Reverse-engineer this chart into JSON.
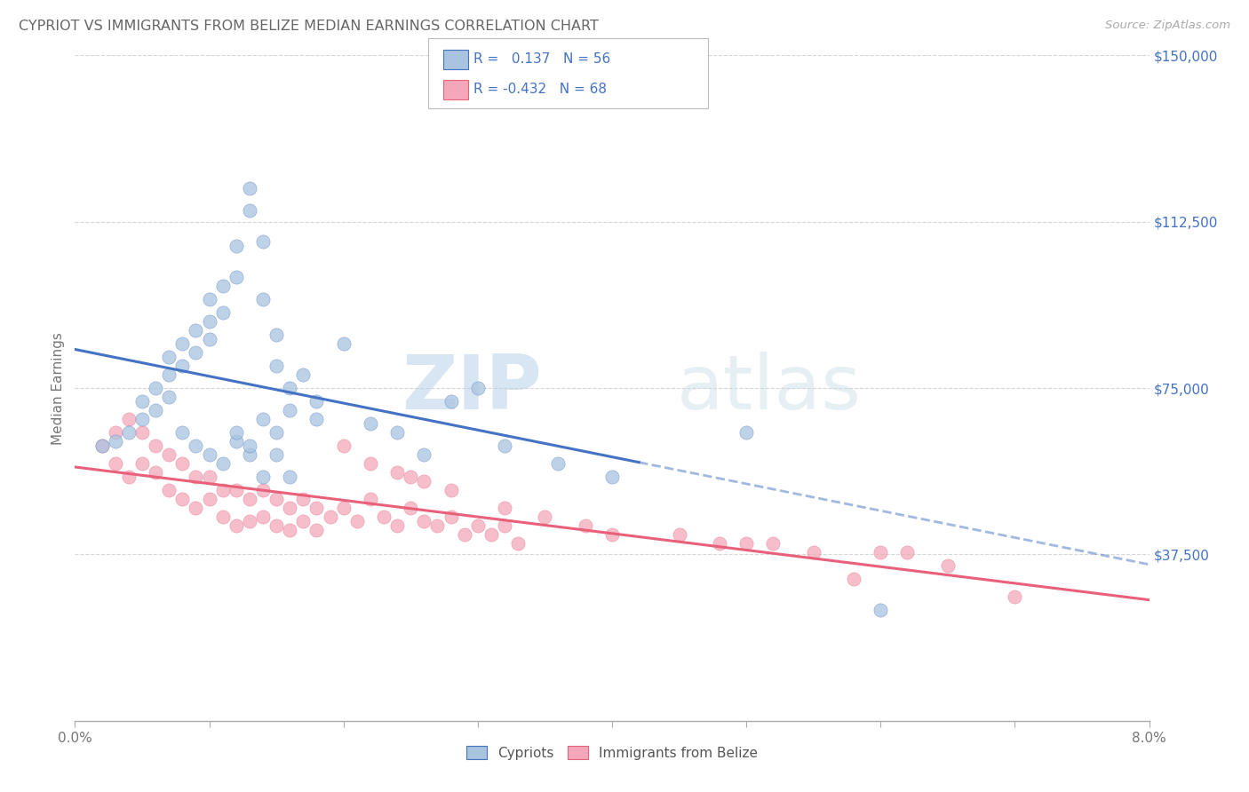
{
  "title": "CYPRIOT VS IMMIGRANTS FROM BELIZE MEDIAN EARNINGS CORRELATION CHART",
  "source": "Source: ZipAtlas.com",
  "ylabel": "Median Earnings",
  "xmin": 0.0,
  "xmax": 0.08,
  "ymin": 0,
  "ymax": 150000,
  "legend_labels": [
    "Cypriots",
    "Immigrants from Belize"
  ],
  "cypriot_color": "#a8c4e0",
  "belize_color": "#f4a7b9",
  "cypriot_line_color": "#4472c4",
  "belize_line_color": "#e8607a",
  "R_cypriot": 0.137,
  "N_cypriot": 56,
  "R_belize": -0.432,
  "N_belize": 68,
  "watermark_zip": "ZIP",
  "watermark_atlas": "atlas",
  "background_color": "#ffffff",
  "grid_color": "#cccccc",
  "title_color": "#555555",
  "cypriot_scatter_x": [
    0.002,
    0.003,
    0.004,
    0.005,
    0.005,
    0.006,
    0.006,
    0.007,
    0.007,
    0.007,
    0.008,
    0.008,
    0.009,
    0.009,
    0.01,
    0.01,
    0.01,
    0.011,
    0.011,
    0.012,
    0.012,
    0.013,
    0.013,
    0.014,
    0.014,
    0.015,
    0.015,
    0.016,
    0.016,
    0.017,
    0.008,
    0.009,
    0.01,
    0.011,
    0.012,
    0.013,
    0.014,
    0.015,
    0.018,
    0.02,
    0.022,
    0.024,
    0.026,
    0.028,
    0.03,
    0.032,
    0.036,
    0.04,
    0.012,
    0.013,
    0.014,
    0.015,
    0.016,
    0.018,
    0.05,
    0.06
  ],
  "cypriot_scatter_y": [
    62000,
    63000,
    65000,
    68000,
    72000,
    70000,
    75000,
    73000,
    78000,
    82000,
    80000,
    85000,
    83000,
    88000,
    86000,
    90000,
    95000,
    92000,
    98000,
    100000,
    107000,
    115000,
    120000,
    108000,
    95000,
    87000,
    80000,
    75000,
    70000,
    78000,
    65000,
    62000,
    60000,
    58000,
    63000,
    60000,
    55000,
    65000,
    68000,
    85000,
    67000,
    65000,
    60000,
    72000,
    75000,
    62000,
    58000,
    55000,
    65000,
    62000,
    68000,
    60000,
    55000,
    72000,
    65000,
    25000
  ],
  "belize_scatter_x": [
    0.002,
    0.003,
    0.003,
    0.004,
    0.004,
    0.005,
    0.005,
    0.006,
    0.006,
    0.007,
    0.007,
    0.008,
    0.008,
    0.009,
    0.009,
    0.01,
    0.01,
    0.011,
    0.011,
    0.012,
    0.012,
    0.013,
    0.013,
    0.014,
    0.014,
    0.015,
    0.015,
    0.016,
    0.016,
    0.017,
    0.017,
    0.018,
    0.018,
    0.019,
    0.02,
    0.021,
    0.022,
    0.023,
    0.024,
    0.025,
    0.026,
    0.027,
    0.028,
    0.029,
    0.03,
    0.031,
    0.032,
    0.033,
    0.025,
    0.028,
    0.032,
    0.035,
    0.038,
    0.04,
    0.02,
    0.022,
    0.024,
    0.026,
    0.05,
    0.052,
    0.06,
    0.062,
    0.07,
    0.045,
    0.048,
    0.055,
    0.058,
    0.065
  ],
  "belize_scatter_y": [
    62000,
    65000,
    58000,
    68000,
    55000,
    65000,
    58000,
    62000,
    56000,
    60000,
    52000,
    58000,
    50000,
    55000,
    48000,
    55000,
    50000,
    52000,
    46000,
    52000,
    44000,
    50000,
    45000,
    52000,
    46000,
    50000,
    44000,
    48000,
    43000,
    50000,
    45000,
    48000,
    43000,
    46000,
    48000,
    45000,
    50000,
    46000,
    44000,
    48000,
    45000,
    44000,
    46000,
    42000,
    44000,
    42000,
    44000,
    40000,
    55000,
    52000,
    48000,
    46000,
    44000,
    42000,
    62000,
    58000,
    56000,
    54000,
    40000,
    40000,
    38000,
    38000,
    28000,
    42000,
    40000,
    38000,
    32000,
    35000
  ]
}
